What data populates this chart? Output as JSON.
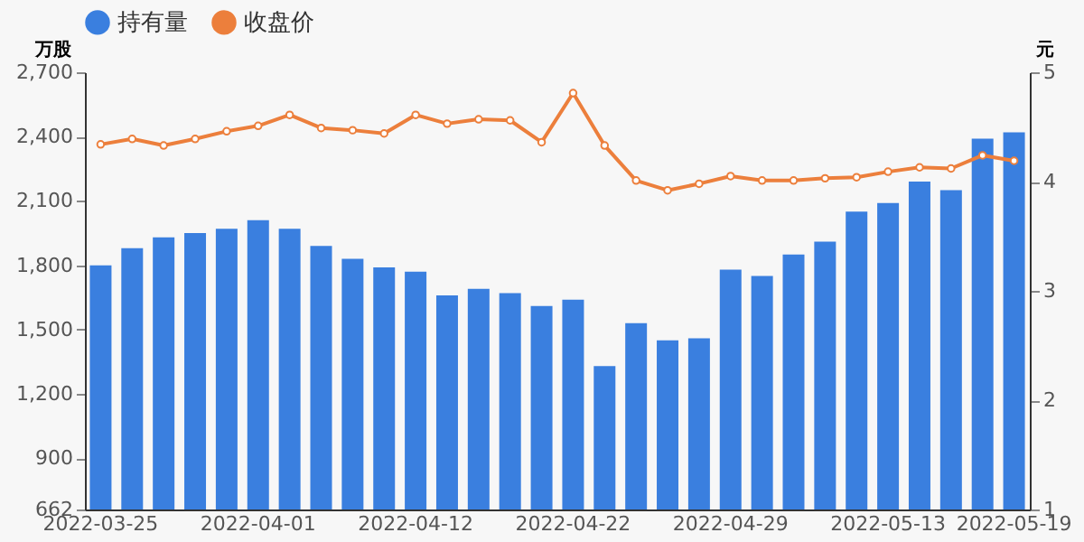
{
  "chart_data": {
    "type": "bar",
    "categories": [
      "2022-03-25",
      null,
      null,
      null,
      null,
      "2022-04-01",
      null,
      null,
      null,
      null,
      "2022-04-12",
      null,
      null,
      null,
      null,
      "2022-04-22",
      null,
      null,
      null,
      null,
      "2022-04-29",
      null,
      null,
      null,
      null,
      "2022-05-13",
      null,
      null,
      null,
      "2022-05-19"
    ],
    "series": [
      {
        "name": "持有量",
        "color": "#3a7fdf",
        "values": [
          1800,
          1880,
          1930,
          1950,
          1970,
          2010,
          1970,
          1890,
          1830,
          1790,
          1770,
          1660,
          1690,
          1670,
          1610,
          1640,
          1330,
          1530,
          1450,
          1460,
          1780,
          1750,
          1850,
          1910,
          2050,
          2090,
          2190,
          2150,
          2390,
          2420
        ]
      },
      {
        "name": "收盘价",
        "type": "line",
        "axis": "y2",
        "color": "#ec7f3c",
        "marker": "circle",
        "values": [
          4.34,
          4.39,
          4.33,
          4.39,
          4.46,
          4.51,
          4.61,
          4.49,
          4.47,
          4.44,
          4.61,
          4.53,
          4.57,
          4.56,
          4.36,
          4.81,
          4.33,
          4.01,
          3.92,
          3.98,
          4.05,
          4.01,
          4.01,
          4.03,
          4.04,
          4.09,
          4.13,
          4.12,
          4.24,
          4.19
        ]
      }
    ],
    "ylabel": "万股",
    "y2label": "元",
    "ylim": [
      662,
      2700
    ],
    "yticks": [
      662,
      900,
      {
        "value": 1200,
        "label": "1,200"
      },
      {
        "value": 1500,
        "label": "1,500"
      },
      {
        "value": 1800,
        "label": "1,800"
      },
      {
        "value": 2100,
        "label": "2,100"
      },
      {
        "value": 2400,
        "label": "2,400"
      },
      {
        "value": 2700,
        "label": "2,700"
      }
    ],
    "y2lim": [
      1,
      5
    ],
    "y2ticks": [
      1,
      2,
      3,
      4,
      5
    ],
    "grid": false,
    "legend": "top"
  }
}
